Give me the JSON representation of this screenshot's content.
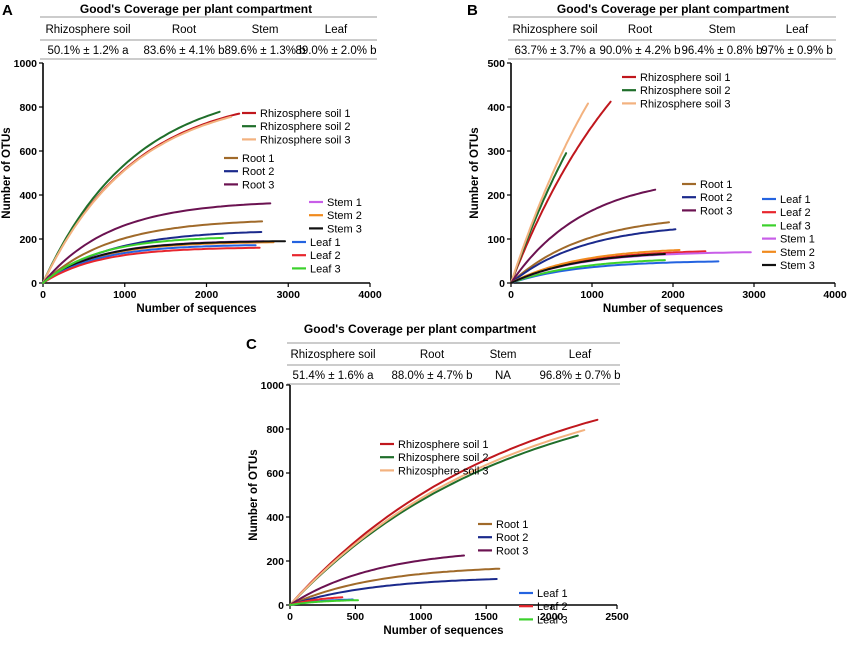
{
  "colors": {
    "rhizo1": "#c0171d",
    "rhizo2": "#1f6e2a",
    "rhizo3": "#f3b27f",
    "root1": "#a06a2a",
    "root2": "#1b2a8c",
    "root3": "#6b1251",
    "stem1": "#c85ee8",
    "stem2": "#f08a1e",
    "stem3": "#111111",
    "leaf1": "#2463e0",
    "leaf2": "#e8262e",
    "leaf3": "#3cd12c"
  },
  "panels": [
    {
      "letter": "A",
      "coverage": {
        "title": "Good's Coverage per plant compartment",
        "headers": [
          "Rhizosphere soil",
          "Root",
          "Stem",
          "Leaf"
        ],
        "values": [
          "50.1% ± 1.2% a",
          "83.6% ± 4.1% b",
          "89.6% ± 1.3% b",
          "89.0% ± 2.0% b"
        ]
      }
    },
    {
      "letter": "B",
      "coverage": {
        "title": "Good's Coverage per plant compartment",
        "headers": [
          "Rhizosphere soil",
          "Root",
          "Stem",
          "Leaf"
        ],
        "values": [
          "63.7% ± 3.7% a",
          "90.0% ± 4.2% b",
          "96.4% ± 0.8% b",
          "97% ± 0.9% b"
        ]
      }
    },
    {
      "letter": "C",
      "coverage": {
        "title": "Good's Coverage per plant compartment",
        "headers": [
          "Rhizosphere soil",
          "Root",
          "Stem",
          "Leaf"
        ],
        "values": [
          "51.4% ± 1.6% a",
          "88.0% ± 4.7% b",
          "NA",
          "96.8% ± 0.7% b"
        ]
      }
    }
  ],
  "chart_data": [
    {
      "type": "line",
      "panel": "A",
      "xlabel": "Number of sequences",
      "ylabel": "Number of OTUs",
      "xlim": [
        0,
        4000
      ],
      "ylim": [
        0,
        1000
      ],
      "xticks": [
        0,
        1000,
        2000,
        3000,
        4000
      ],
      "yticks": [
        0,
        200,
        400,
        600,
        800,
        1000
      ],
      "legend": [
        [
          "Rhizosphere soil 1",
          "Rhizosphere soil 2",
          "Rhizosphere soil 3"
        ],
        [
          "Root 1",
          "Root 2",
          "Root 3"
        ],
        [
          "Stem 1",
          "Stem 2",
          "Stem 3"
        ],
        [
          "Leaf 1",
          "Leaf 2",
          "Leaf 3"
        ]
      ],
      "series": [
        {
          "name": "Rhizosphere soil 1",
          "color": "rhizo1",
          "end_x": 2400,
          "end_y": 770,
          "shape": 0.0009
        },
        {
          "name": "Rhizosphere soil 2",
          "color": "rhizo2",
          "end_x": 2160,
          "end_y": 778,
          "shape": 0.0009
        },
        {
          "name": "Rhizosphere soil 3",
          "color": "rhizo3",
          "end_x": 2300,
          "end_y": 755,
          "shape": 0.0009
        },
        {
          "name": "Root 1",
          "color": "root1",
          "end_x": 2680,
          "end_y": 280,
          "shape": 0.0012
        },
        {
          "name": "Root 2",
          "color": "root2",
          "end_x": 2670,
          "end_y": 232,
          "shape": 0.0012
        },
        {
          "name": "Root 3",
          "color": "root3",
          "end_x": 2780,
          "end_y": 362,
          "shape": 0.0012
        },
        {
          "name": "Stem 1",
          "color": "stem1",
          "end_x": 2700,
          "end_y": 190,
          "shape": 0.0015
        },
        {
          "name": "Stem 2",
          "color": "stem2",
          "end_x": 2820,
          "end_y": 185,
          "shape": 0.0015
        },
        {
          "name": "Stem 3",
          "color": "stem3",
          "end_x": 2960,
          "end_y": 190,
          "shape": 0.0015
        },
        {
          "name": "Leaf 1",
          "color": "leaf1",
          "end_x": 2600,
          "end_y": 172,
          "shape": 0.0015
        },
        {
          "name": "Leaf 2",
          "color": "leaf2",
          "end_x": 2650,
          "end_y": 160,
          "shape": 0.0015
        },
        {
          "name": "Leaf 3",
          "color": "leaf3",
          "end_x": 2200,
          "end_y": 205,
          "shape": 0.0015
        }
      ]
    },
    {
      "type": "line",
      "panel": "B",
      "xlabel": "Number of sequences",
      "ylabel": "Number of OTUs",
      "xlim": [
        0,
        4000
      ],
      "ylim": [
        0,
        500
      ],
      "xticks": [
        0,
        1000,
        2000,
        3000,
        4000
      ],
      "yticks": [
        0,
        100,
        200,
        300,
        400,
        500
      ],
      "legend": [
        [
          "Rhizosphere soil 1",
          "Rhizosphere soil 2",
          "Rhizosphere soil 3"
        ],
        [
          "Root 1",
          "Root 2",
          "Root 3"
        ],
        [
          "Leaf 1",
          "Leaf 2",
          "Leaf 3",
          "Stem 1",
          "Stem 2",
          "Stem 3"
        ]
      ],
      "series": [
        {
          "name": "Rhizosphere soil 1",
          "color": "rhizo1",
          "end_x": 1230,
          "end_y": 412,
          "shape": 0.0006
        },
        {
          "name": "Rhizosphere soil 2",
          "color": "rhizo2",
          "end_x": 680,
          "end_y": 295,
          "shape": 0.0006
        },
        {
          "name": "Rhizosphere soil 3",
          "color": "rhizo3",
          "end_x": 950,
          "end_y": 408,
          "shape": 0.0006
        },
        {
          "name": "Root 1",
          "color": "root1",
          "end_x": 1950,
          "end_y": 138,
          "shape": 0.0011
        },
        {
          "name": "Root 2",
          "color": "root2",
          "end_x": 2030,
          "end_y": 122,
          "shape": 0.0011
        },
        {
          "name": "Root 3",
          "color": "root3",
          "end_x": 1780,
          "end_y": 212,
          "shape": 0.0011
        },
        {
          "name": "Leaf 1",
          "color": "leaf1",
          "end_x": 2560,
          "end_y": 49,
          "shape": 0.0012
        },
        {
          "name": "Leaf 2",
          "color": "leaf2",
          "end_x": 2400,
          "end_y": 72,
          "shape": 0.0012
        },
        {
          "name": "Leaf 3",
          "color": "leaf3",
          "end_x": 1900,
          "end_y": 52,
          "shape": 0.0012
        },
        {
          "name": "Stem 1",
          "color": "stem1",
          "end_x": 2960,
          "end_y": 70,
          "shape": 0.0012
        },
        {
          "name": "Stem 2",
          "color": "stem2",
          "end_x": 2080,
          "end_y": 75,
          "shape": 0.0012
        },
        {
          "name": "Stem 3",
          "color": "stem3",
          "end_x": 1900,
          "end_y": 66,
          "shape": 0.0012
        }
      ]
    },
    {
      "type": "line",
      "panel": "C",
      "xlabel": "Number of sequences",
      "ylabel": "Number of OTUs",
      "xlim": [
        0,
        2500
      ],
      "ylim": [
        0,
        1000
      ],
      "xticks": [
        0,
        500,
        1000,
        1500,
        2000,
        2500
      ],
      "yticks": [
        0,
        200,
        400,
        600,
        800,
        1000
      ],
      "legend": [
        [
          "Rhizosphere soil 1",
          "Rhizosphere soil 2",
          "Rhizosphere soil 3"
        ],
        [
          "Root 1",
          "Root 2",
          "Root 3"
        ],
        [
          "Leaf 1",
          "Leaf 2",
          "Leaf 3"
        ]
      ],
      "series": [
        {
          "name": "Rhizosphere soil 1",
          "color": "rhizo1",
          "end_x": 2350,
          "end_y": 842,
          "shape": 0.0006
        },
        {
          "name": "Rhizosphere soil 2",
          "color": "rhizo2",
          "end_x": 2200,
          "end_y": 770,
          "shape": 0.0006
        },
        {
          "name": "Rhizosphere soil 3",
          "color": "rhizo3",
          "end_x": 2250,
          "end_y": 795,
          "shape": 0.0006
        },
        {
          "name": "Root 1",
          "color": "root1",
          "end_x": 1600,
          "end_y": 165,
          "shape": 0.0015
        },
        {
          "name": "Root 2",
          "color": "root2",
          "end_x": 1580,
          "end_y": 118,
          "shape": 0.0015
        },
        {
          "name": "Root 3",
          "color": "root3",
          "end_x": 1330,
          "end_y": 225,
          "shape": 0.0015
        },
        {
          "name": "Leaf 1",
          "color": "leaf1",
          "end_x": 480,
          "end_y": 25,
          "shape": 0.004
        },
        {
          "name": "Leaf 2",
          "color": "leaf2",
          "end_x": 400,
          "end_y": 35,
          "shape": 0.004
        },
        {
          "name": "Leaf 3",
          "color": "leaf3",
          "end_x": 520,
          "end_y": 22,
          "shape": 0.004
        }
      ]
    }
  ]
}
